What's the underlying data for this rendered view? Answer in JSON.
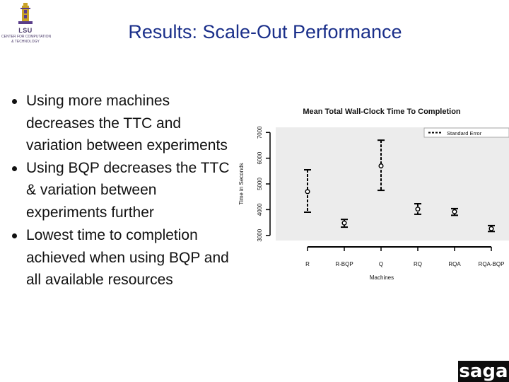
{
  "logo": {
    "abbr": "LSU",
    "line1": "CENTER FOR COMPUTATION",
    "line2": "& TECHNOLOGY"
  },
  "slide": {
    "title": "Results: Scale-Out Performance",
    "bullets": [
      "Using more machines decreases the TTC and variation between experiments",
      "Using BQP decreases the TTC & variation between experiments further",
      "Lowest time to completion achieved when using BQP and all available resources"
    ]
  },
  "footer": {
    "brand": "saga"
  },
  "chart_data": {
    "type": "scatter",
    "title": "Mean Total Wall-Clock Time To Completion",
    "xlabel": "Machines",
    "ylabel": "Time in Seconds",
    "categories": [
      "R",
      "R-BQP",
      "Q",
      "RQ",
      "RQA",
      "RQA-BQP"
    ],
    "means": [
      4700,
      3480,
      5700,
      4020,
      3920,
      3260
    ],
    "error_low": [
      3900,
      3320,
      4750,
      3820,
      3780,
      3150
    ],
    "error_high": [
      5550,
      3620,
      6700,
      4230,
      4040,
      3380
    ],
    "yticks": [
      3000,
      4000,
      5000,
      6000,
      7000
    ],
    "ylim": [
      2800,
      7200
    ],
    "legend": {
      "label": "Standard Error",
      "position": "top-right"
    },
    "grid": false,
    "colors": {
      "background": "#ececec",
      "mark": "#000000"
    }
  }
}
